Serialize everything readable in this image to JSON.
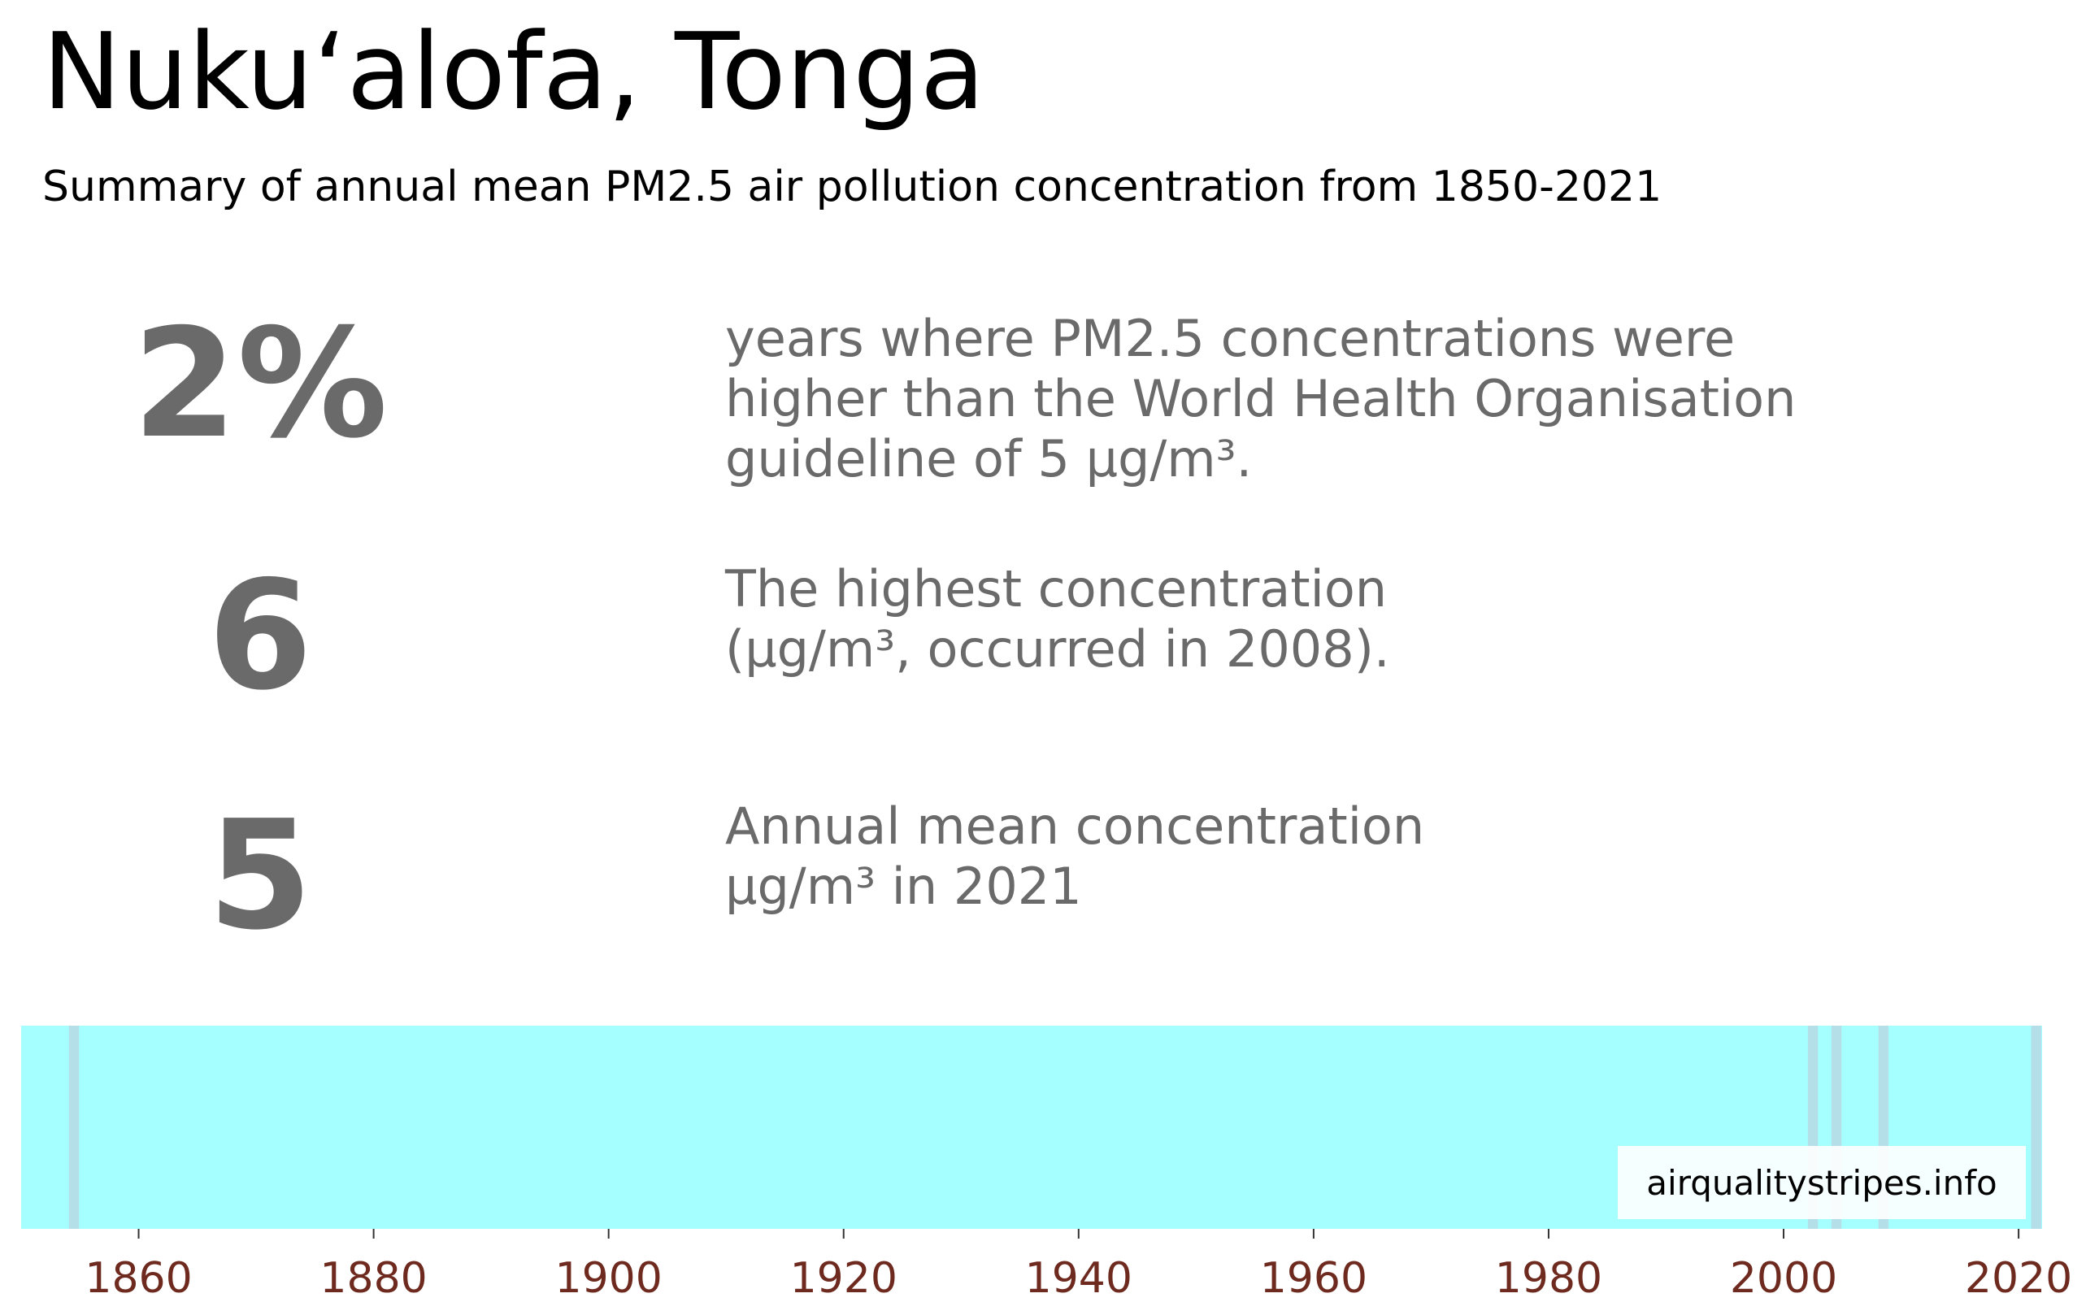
{
  "header": {
    "title": "Nukuʻalofa, Tonga",
    "subtitle": "Summary of annual mean PM2.5 air pollution concentration from 1850-2021"
  },
  "stats": [
    {
      "value": "2%",
      "description": "years where PM2.5 concentrations were\nhigher than the World Health Organisation\nguideline of 5 µg/m³."
    },
    {
      "value": "6",
      "description": "The highest concentration\n(µg/m³, occurred in 2008)."
    },
    {
      "value": "5",
      "description": "Annual mean concentration\nµg/m³ in 2021"
    }
  ],
  "watermark": "airqualitystripes.info",
  "colors": {
    "stripe_base": "#a6ffff",
    "stripe_high": "#b5dfe8",
    "tick_label": "#6e2a1e",
    "stat_text": "#6a6a6a"
  },
  "chart_data": {
    "type": "bar",
    "x_range": [
      1850,
      2021
    ],
    "xlim": [
      1850,
      2022
    ],
    "base_stripe": {
      "from": 1850,
      "to": 2021
    },
    "highlighted_years": [
      1854,
      2002,
      2004,
      2008,
      2021
    ],
    "xticks": [
      1860,
      1880,
      1900,
      1920,
      1940,
      1960,
      1980,
      2000,
      2020
    ],
    "xlabel": "",
    "ylabel": ""
  }
}
